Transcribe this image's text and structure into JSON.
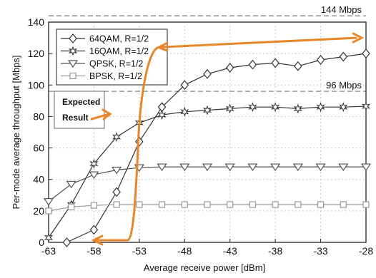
{
  "chart_data": {
    "type": "line",
    "title": "",
    "xlabel": "Average receive power [dBm]",
    "ylabel": "Per-mode average throughput [Mbps]",
    "xlim": [
      -63,
      -28
    ],
    "ylim": [
      0,
      140
    ],
    "xticks": [
      -63,
      -58,
      -53,
      -48,
      -43,
      -38,
      -33,
      -28
    ],
    "yticks": [
      0,
      20,
      40,
      60,
      80,
      100,
      120,
      140
    ],
    "grid": true,
    "legend_position": "top-left",
    "series": [
      {
        "name": "64QAM, R=1/2",
        "marker": "diamond",
        "color": "#333333",
        "x": [
          -61,
          -58,
          -55.5,
          -53,
          -50.5,
          -48,
          -45.5,
          -43,
          -40.5,
          -38,
          -35.5,
          -33,
          -30.5,
          -28
        ],
        "y": [
          0,
          8,
          32,
          64,
          86,
          100,
          107,
          111,
          113,
          114,
          112,
          116,
          118,
          120
        ]
      },
      {
        "name": "16QAM, R=1/2",
        "marker": "star",
        "color": "#333333",
        "x": [
          -63,
          -60.5,
          -58,
          -55.5,
          -53,
          -50.5,
          -48,
          -45.5,
          -43,
          -40.5,
          -38,
          -35.5,
          -33,
          -30.5,
          -28
        ],
        "y": [
          3,
          24,
          50,
          67,
          76,
          81,
          83,
          84,
          85,
          86,
          86,
          85,
          86,
          86,
          86.5
        ]
      },
      {
        "name": "QPSK, R=1/2",
        "marker": "triangle-down",
        "color": "#555555",
        "x": [
          -63,
          -60.5,
          -58,
          -55.5,
          -53,
          -50.5,
          -48,
          -45.5,
          -43,
          -40.5,
          -38,
          -35.5,
          -33,
          -30.5,
          -28
        ],
        "y": [
          26,
          37,
          43,
          46,
          47.5,
          48,
          48,
          48,
          48,
          48,
          48,
          48,
          48,
          48,
          48
        ]
      },
      {
        "name": "BPSK, R=1/2",
        "marker": "square",
        "color": "#999999",
        "x": [
          -63,
          -60.5,
          -58,
          -55.5,
          -53,
          -50.5,
          -48,
          -45.5,
          -43,
          -40.5,
          -38,
          -35.5,
          -33,
          -30.5,
          -28
        ],
        "y": [
          20,
          22.5,
          23.5,
          24,
          24,
          24,
          24,
          24,
          24,
          24,
          24,
          24,
          24,
          24,
          24
        ]
      }
    ],
    "reference_lines": [
      {
        "label": "144 Mbps",
        "y": 144
      },
      {
        "label": "96 Mbps",
        "y": 96
      }
    ],
    "annotation": {
      "lines": [
        "Expected",
        "Result"
      ],
      "color": "#e8862a",
      "curve_x": [
        -58.2,
        -53.5,
        -51.5,
        -28.3
      ],
      "curve_y": [
        0,
        0,
        124,
        130
      ]
    }
  }
}
